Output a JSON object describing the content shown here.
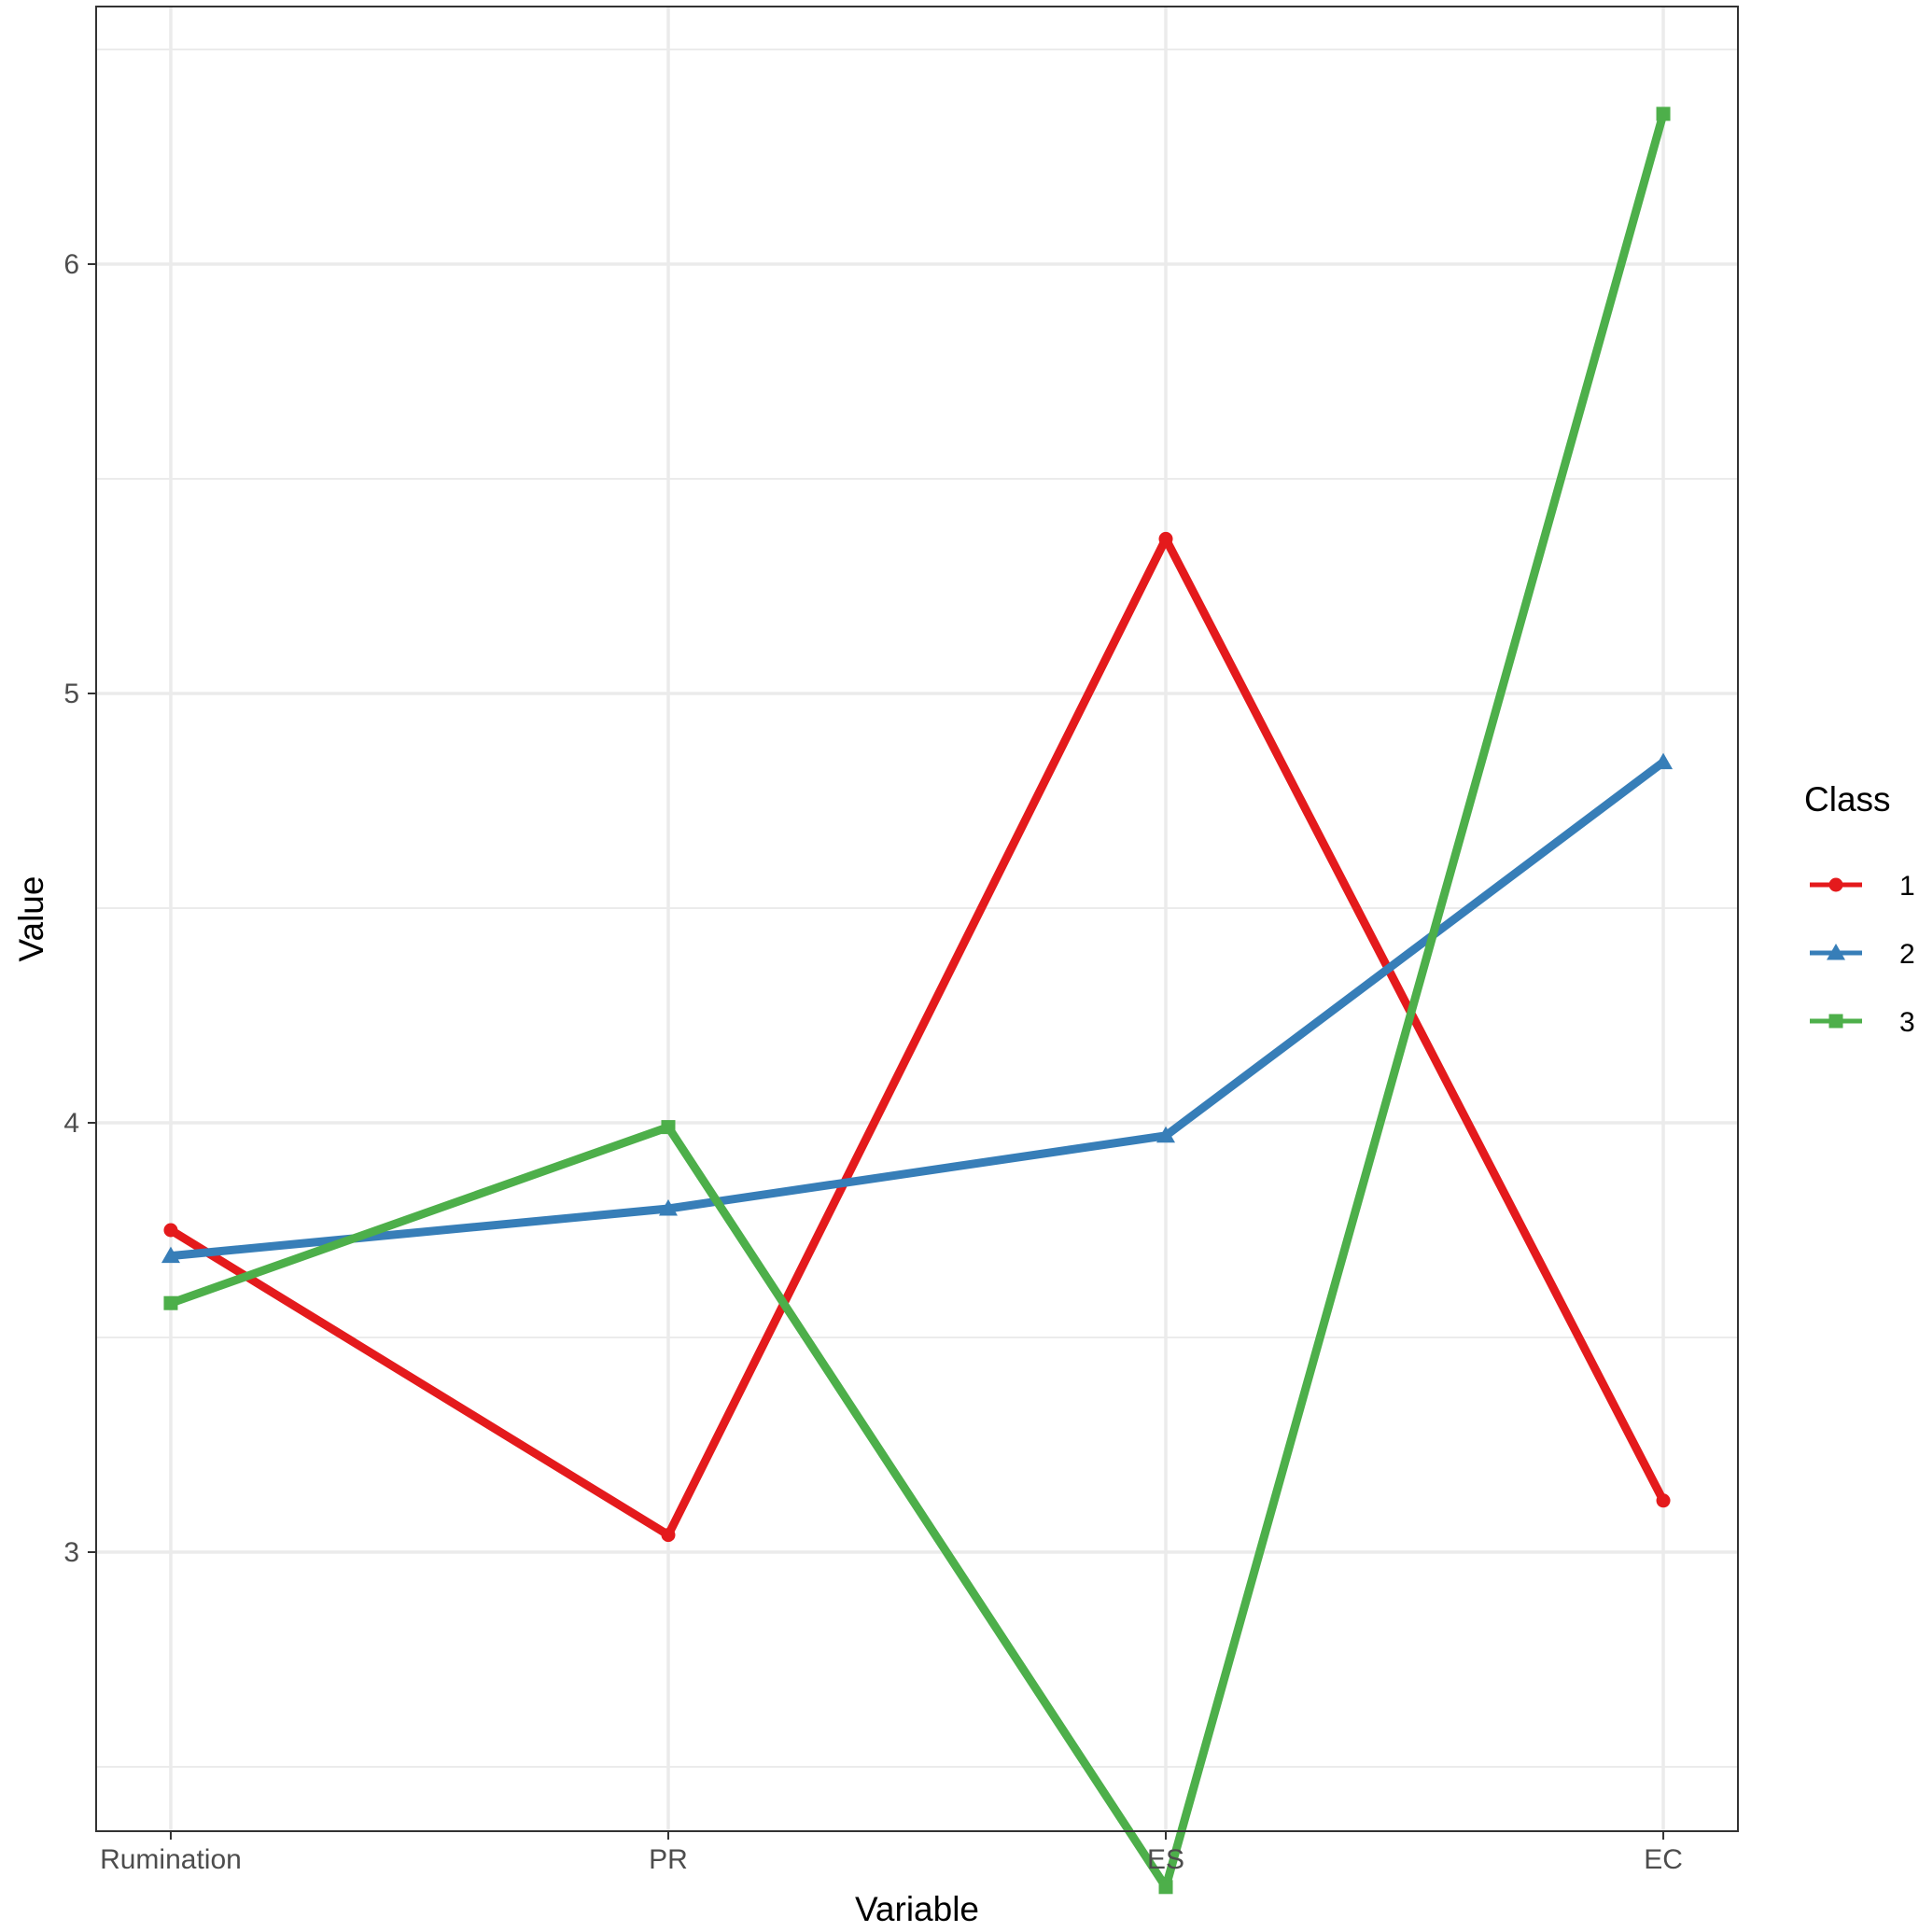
{
  "chart_data": {
    "type": "line",
    "categories": [
      "Rumination",
      "PR",
      "ES",
      "EC"
    ],
    "xlabel": "Variable",
    "ylabel": "Value",
    "ylim": [
      2.35,
      6.6
    ],
    "y_ticks": [
      3,
      4,
      5,
      6
    ],
    "grid": true,
    "legend": {
      "title": "Class",
      "placement": "right"
    },
    "series": [
      {
        "name": "1",
        "color": "#e41a1c",
        "marker": "circle",
        "values": [
          3.75,
          3.04,
          5.36,
          3.12
        ]
      },
      {
        "name": "2",
        "color": "#377eb8",
        "marker": "triangle",
        "values": [
          3.69,
          3.8,
          3.97,
          4.84
        ]
      },
      {
        "name": "3",
        "color": "#4daf4a",
        "marker": "square",
        "values": [
          3.58,
          3.99,
          2.22,
          6.35
        ]
      }
    ]
  }
}
